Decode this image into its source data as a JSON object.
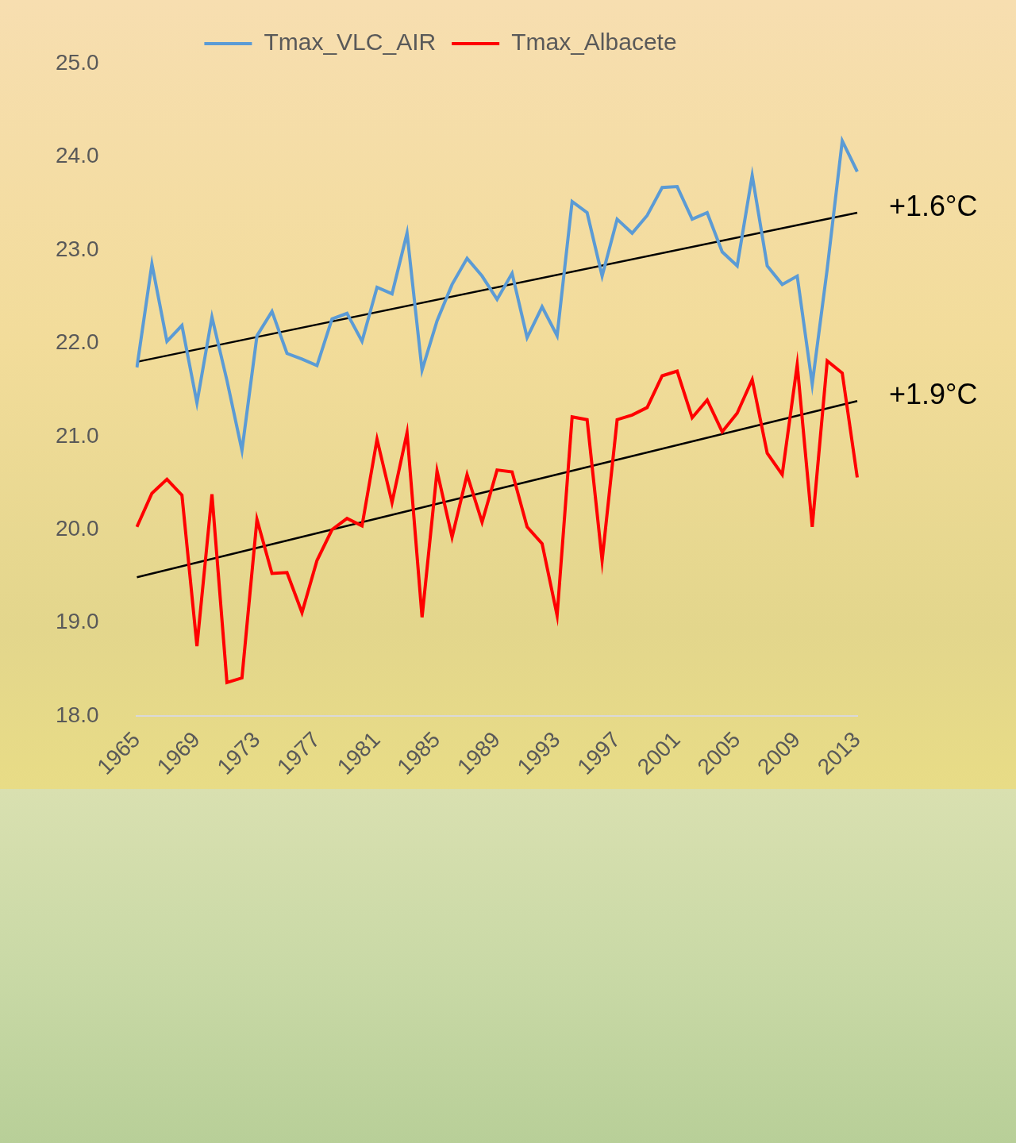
{
  "chart_data": {
    "type": "line",
    "categories": [
      "1965",
      null,
      null,
      null,
      "1969",
      null,
      null,
      null,
      "1973",
      null,
      null,
      null,
      "1977",
      null,
      null,
      null,
      "1981",
      null,
      null,
      null,
      "1985",
      null,
      null,
      null,
      "1989",
      null,
      null,
      null,
      "1993",
      null,
      null,
      null,
      "1997",
      null,
      null,
      null,
      "2001",
      null,
      null,
      null,
      "2005",
      null,
      null,
      null,
      "2009",
      null,
      null,
      null,
      "2013"
    ],
    "series": [
      {
        "name": "Tmax_VLC_AIR",
        "color": "#5b9bd5",
        "values": [
          21.74,
          22.85,
          22.02,
          22.19,
          21.36,
          22.28,
          21.6,
          20.85,
          22.08,
          22.34,
          21.89,
          21.83,
          21.76,
          22.26,
          22.32,
          22.02,
          22.6,
          22.53,
          23.18,
          21.71,
          22.24,
          22.63,
          22.91,
          22.72,
          22.47,
          22.75,
          22.06,
          22.39,
          22.08,
          23.52,
          23.4,
          22.72,
          23.33,
          23.18,
          23.37,
          23.67,
          23.68,
          23.33,
          23.4,
          22.98,
          22.83,
          23.8,
          22.83,
          22.63,
          22.72,
          21.56,
          22.8,
          24.17,
          23.84
        ],
        "trend": [
          21.8,
          23.4
        ],
        "trend_label": "+1.6°C"
      },
      {
        "name": "Tmax_Albacete",
        "color": "#ff0000",
        "values": [
          20.03,
          20.39,
          20.54,
          20.37,
          18.75,
          20.38,
          18.36,
          18.41,
          20.11,
          19.53,
          19.54,
          19.11,
          19.67,
          20.0,
          20.12,
          20.04,
          20.97,
          20.29,
          21.04,
          19.06,
          20.63,
          19.92,
          20.59,
          20.08,
          20.64,
          20.62,
          20.03,
          19.85,
          19.08,
          21.21,
          21.18,
          19.67,
          21.18,
          21.23,
          21.31,
          21.65,
          21.7,
          21.2,
          21.39,
          21.05,
          21.25,
          21.61,
          20.82,
          20.59,
          21.77,
          20.03,
          21.81,
          21.68,
          20.56
        ],
        "trend": [
          19.49,
          21.38
        ],
        "trend_label": "+1.9°C"
      }
    ],
    "ylim": [
      18,
      25
    ],
    "yticks": [
      {
        "value": 18,
        "label": "18.0"
      },
      {
        "value": 19,
        "label": "19.0"
      },
      {
        "value": 20,
        "label": "20.0"
      },
      {
        "value": 21,
        "label": "21.0"
      },
      {
        "value": 22,
        "label": "22.0"
      },
      {
        "value": 23,
        "label": "23.0"
      },
      {
        "value": 24,
        "label": "24.0"
      },
      {
        "value": 25,
        "label": "25.0"
      }
    ],
    "grid": false,
    "legend": "top"
  }
}
